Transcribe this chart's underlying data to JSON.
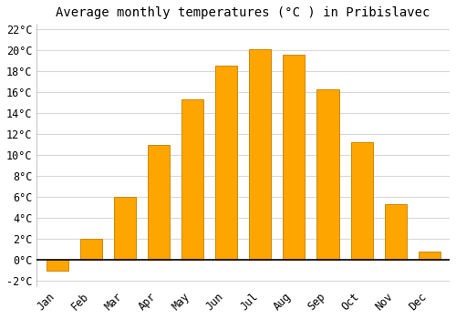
{
  "months": [
    "Jan",
    "Feb",
    "Mar",
    "Apr",
    "May",
    "Jun",
    "Jul",
    "Aug",
    "Sep",
    "Oct",
    "Nov",
    "Dec"
  ],
  "values": [
    -1.0,
    2.0,
    6.0,
    11.0,
    15.3,
    18.5,
    20.1,
    19.6,
    16.3,
    11.2,
    5.3,
    0.8
  ],
  "bar_color": "#FFA500",
  "bar_edge_color": "#CC8800",
  "title": "Average monthly temperatures (°C ) in Pribislavec",
  "ylim": [
    -2.5,
    22.5
  ],
  "yticks": [
    -2,
    0,
    2,
    4,
    6,
    8,
    10,
    12,
    14,
    16,
    18,
    20,
    22
  ],
  "background_color": "#ffffff",
  "grid_color": "#d8d8d8",
  "title_fontsize": 10,
  "tick_fontsize": 8.5
}
